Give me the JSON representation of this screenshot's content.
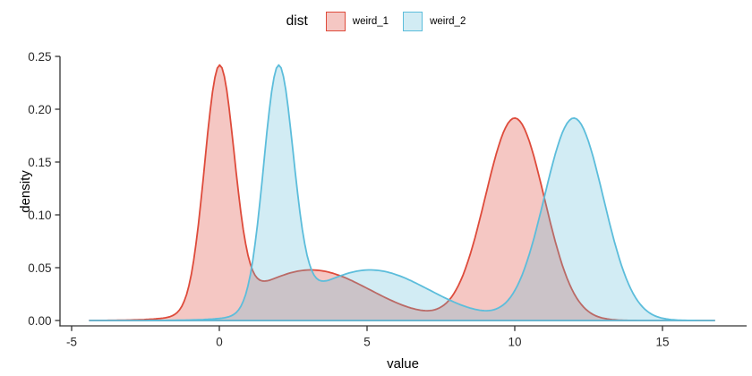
{
  "chart_data": {
    "type": "area",
    "subtype": "density-plot",
    "title": "",
    "xlabel": "value",
    "ylabel": "density",
    "xlim": [
      -5.4,
      17.9
    ],
    "ylim": [
      0,
      0.25
    ],
    "grid": false,
    "x_ticks": {
      "values": [
        -5,
        0,
        5,
        10,
        15
      ],
      "labels": [
        "-5",
        "0",
        "5",
        "10",
        "15"
      ]
    },
    "y_ticks": {
      "values": [
        0,
        0.05,
        0.1,
        0.15,
        0.2,
        0.25
      ],
      "labels": [
        "0.00",
        "0.05",
        "0.10",
        "0.15",
        "0.20",
        "0.25"
      ]
    },
    "legend": {
      "title": "dist",
      "position": "top-center",
      "entries": [
        {
          "label": "weird_1"
        },
        {
          "label": "weird_2"
        }
      ]
    },
    "series": [
      {
        "name": "weird_1",
        "stroke": "#DE4B3B",
        "fill": "rgba(222,69,55,0.30)",
        "x_range": [
          -4.39,
          16.76
        ],
        "components": [
          {
            "weight": 0.285,
            "mean": 0.0,
            "sd": 0.5
          },
          {
            "weight": 0.24,
            "mean": 3.1,
            "sd": 2.0
          },
          {
            "weight": 0.48,
            "mean": 10.0,
            "sd": 1.0
          }
        ],
        "peaks": [
          {
            "x": 0.0,
            "density": 0.241
          },
          {
            "x": 3.1,
            "density": 0.047
          },
          {
            "x": 10.0,
            "density": 0.192
          }
        ]
      },
      {
        "name": "weird_2",
        "stroke": "#5CBDDB",
        "fill": "rgba(95,188,217,0.28)",
        "x_range": [
          -4.39,
          16.76
        ],
        "components": [
          {
            "weight": 0.285,
            "mean": 2.0,
            "sd": 0.5
          },
          {
            "weight": 0.24,
            "mean": 5.1,
            "sd": 2.0
          },
          {
            "weight": 0.48,
            "mean": 12.0,
            "sd": 1.0
          }
        ],
        "peaks": [
          {
            "x": 2.0,
            "density": 0.241
          },
          {
            "x": 5.1,
            "density": 0.047
          },
          {
            "x": 12.0,
            "density": 0.192
          }
        ]
      }
    ]
  }
}
